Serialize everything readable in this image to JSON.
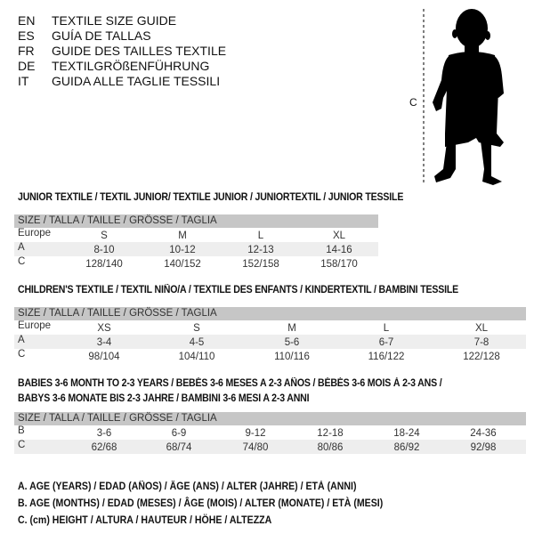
{
  "languages": [
    {
      "code": "EN",
      "label": "TEXTILE SIZE GUIDE"
    },
    {
      "code": "ES",
      "label": "GUÍA DE TALLAS"
    },
    {
      "code": "FR",
      "label": "GUIDE DES TAILLES TEXTILE"
    },
    {
      "code": "DE",
      "label": "TEXTILGRÖßENFÜHRUNG"
    },
    {
      "code": "IT",
      "label": "GUIDA ALLE TAGLIE TESSILI"
    }
  ],
  "figure": {
    "measure_label": "C"
  },
  "size_header": "SIZE / TALLA / TAILLE / GRÖSSE / TAGLIA",
  "junior": {
    "title": "JUNIOR TEXTILE / TEXTIL JUNIOR/ TEXTILE JUNIOR / JUNIORTEXTIL / JUNIOR TESSILE",
    "rows": [
      {
        "label": "Europe",
        "values": [
          "S",
          "M",
          "L",
          "XL"
        ]
      },
      {
        "label": "A",
        "values": [
          "8-10",
          "10-12",
          "12-13",
          "14-16"
        ]
      },
      {
        "label": "C",
        "values": [
          "128/140",
          "140/152",
          "152/158",
          "158/170"
        ]
      }
    ]
  },
  "children": {
    "title": "CHILDREN'S TEXTILE / TEXTIL NIÑO/A / TEXTILE DES ENFANTS / KINDERTEXTIL / BAMBINI TESSILE",
    "rows": [
      {
        "label": "Europe",
        "values": [
          "XS",
          "S",
          "M",
          "L",
          "XL"
        ]
      },
      {
        "label": "A",
        "values": [
          "3-4",
          "4-5",
          "5-6",
          "6-7",
          "7-8"
        ]
      },
      {
        "label": "C",
        "values": [
          "98/104",
          "104/110",
          "110/116",
          "116/122",
          "122/128"
        ]
      }
    ]
  },
  "babies": {
    "title_line1": "BABIES 3-6 MONTH TO 2-3 YEARS / BEBÉS 3-6 MESES A 2-3 AÑOS / BÉBÉS 3-6 MOIS À 2-3 ANS /",
    "title_line2": "BABYS 3-6 MONATE BIS 2-3 JAHRE / BAMBINI 3-6 MESI A 2-3 ANNI",
    "rows": [
      {
        "label": "B",
        "values": [
          "3-6",
          "6-9",
          "9-12",
          "12-18",
          "18-24",
          "24-36"
        ]
      },
      {
        "label": "C",
        "values": [
          "62/68",
          "68/74",
          "74/80",
          "80/86",
          "86/92",
          "92/98"
        ]
      }
    ]
  },
  "legend": [
    "A. AGE (YEARS) / EDAD (AÑOS) / ÂGE (ANS) / ALTER (JAHRE) / ETÀ (ANNI)",
    "B. AGE (MONTHS) / EDAD (MESES) / ÂGE (MOIS) / ALTER (MONATE) / ETÀ (MESI)",
    "C. (cm) HEIGHT / ALTURA / HAUTEUR / HÖHE / ALTEZZA"
  ]
}
